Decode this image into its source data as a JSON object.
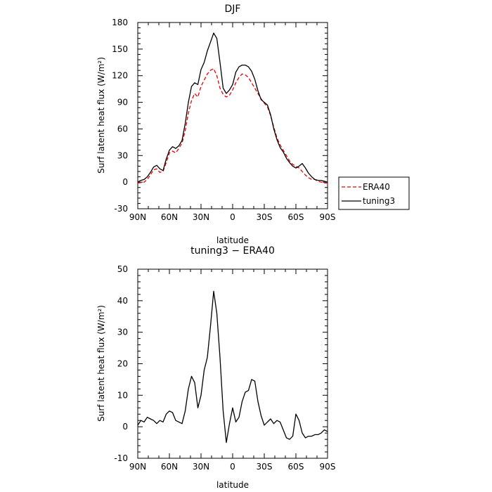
{
  "chart_data": [
    {
      "type": "line",
      "title": "DJF",
      "xlabel": "latitude",
      "ylabel": "Surf latent heat flux (W/m²)",
      "xlim": [
        -90,
        90
      ],
      "ylim": [
        -30,
        180
      ],
      "x_ticks": [
        -90,
        -60,
        -30,
        0,
        30,
        60,
        90
      ],
      "x_tick_labels": [
        "90N",
        "60N",
        "30N",
        "0",
        "30S",
        "60S",
        "90S"
      ],
      "y_ticks": [
        -30,
        0,
        30,
        60,
        90,
        120,
        150,
        180
      ],
      "y_tick_labels": [
        "-30",
        "0",
        "30",
        "60",
        "90",
        "120",
        "150",
        "180"
      ],
      "legend_position": "right-bottom",
      "series": [
        {
          "name": "ERA40",
          "color": "#ee0000",
          "dash": "dashed",
          "x": [
            -90,
            -87,
            -84,
            -81,
            -78,
            -75,
            -72,
            -69,
            -66,
            -63,
            -60,
            -57,
            -54,
            -51,
            -48,
            -45,
            -42,
            -39,
            -36,
            -33,
            -30,
            -27,
            -24,
            -21,
            -18,
            -15,
            -12,
            -9,
            -6,
            -3,
            0,
            3,
            6,
            9,
            12,
            15,
            18,
            21,
            24,
            27,
            30,
            33,
            36,
            39,
            42,
            45,
            48,
            51,
            54,
            57,
            60,
            63,
            66,
            69,
            72,
            75,
            78,
            81,
            84,
            87,
            90
          ],
          "y": [
            -1,
            -0.5,
            0,
            3,
            8,
            14,
            15,
            11,
            12,
            22,
            33,
            35,
            33,
            38,
            44,
            58,
            78,
            92,
            100,
            96,
            108,
            115,
            122,
            126,
            128,
            120,
            106,
            99,
            96,
            98,
            104,
            112,
            118,
            122,
            121,
            118,
            112,
            106,
            100,
            94,
            89,
            85,
            75,
            62,
            50,
            42,
            36,
            30,
            24,
            20,
            18,
            16,
            12,
            8,
            5,
            3,
            3,
            1,
            0,
            -1,
            -1
          ]
        },
        {
          "name": "tuning3",
          "color": "#000000",
          "dash": "solid",
          "x": [
            -90,
            -87,
            -84,
            -81,
            -78,
            -75,
            -72,
            -69,
            -66,
            -63,
            -60,
            -57,
            -54,
            -51,
            -48,
            -45,
            -42,
            -39,
            -36,
            -33,
            -30,
            -27,
            -24,
            -21,
            -18,
            -15,
            -12,
            -9,
            -6,
            -3,
            0,
            3,
            6,
            9,
            12,
            15,
            18,
            21,
            24,
            27,
            30,
            33,
            36,
            39,
            42,
            45,
            48,
            51,
            54,
            57,
            60,
            63,
            66,
            69,
            72,
            75,
            78,
            81,
            84,
            87,
            90
          ],
          "y": [
            0,
            2,
            3,
            6,
            11,
            17,
            19,
            15,
            13,
            26,
            36,
            40,
            38,
            41,
            47,
            66,
            90,
            108,
            112,
            110,
            127,
            135,
            148,
            158,
            168,
            162,
            135,
            106,
            100,
            104,
            110,
            124,
            130,
            132,
            132,
            130,
            125,
            116,
            103,
            93,
            90,
            87,
            76,
            60,
            48,
            39,
            34,
            27,
            22,
            18,
            16,
            18,
            21,
            16,
            10,
            6,
            3,
            2,
            2,
            1,
            0
          ]
        }
      ]
    },
    {
      "type": "line",
      "title": "tuning3 − ERA40",
      "xlabel": "latitude",
      "ylabel": "Surf latent heat flux (W/m²)",
      "xlim": [
        -90,
        90
      ],
      "ylim": [
        -10,
        50
      ],
      "x_ticks": [
        -90,
        -60,
        -30,
        0,
        30,
        60,
        90
      ],
      "x_tick_labels": [
        "90N",
        "60N",
        "30N",
        "0",
        "30S",
        "60S",
        "90S"
      ],
      "y_ticks": [
        -10,
        0,
        10,
        20,
        30,
        40,
        50
      ],
      "y_tick_labels": [
        "-10",
        "0",
        "10",
        "20",
        "30",
        "40",
        "50"
      ],
      "series": [
        {
          "name": "",
          "color": "#000000",
          "dash": "solid",
          "x": [
            -90,
            -87,
            -84,
            -81,
            -78,
            -75,
            -72,
            -69,
            -66,
            -63,
            -60,
            -57,
            -54,
            -51,
            -48,
            -45,
            -42,
            -39,
            -36,
            -33,
            -30,
            -27,
            -24,
            -21,
            -18,
            -15,
            -12,
            -9,
            -6,
            -3,
            0,
            3,
            6,
            9,
            12,
            15,
            18,
            21,
            24,
            27,
            30,
            33,
            36,
            39,
            42,
            45,
            48,
            51,
            54,
            57,
            60,
            63,
            66,
            69,
            72,
            75,
            78,
            81,
            84,
            87,
            90
          ],
          "y": [
            0.5,
            2,
            1.5,
            3,
            2.5,
            2,
            1,
            2,
            1.5,
            4,
            5,
            4.5,
            2,
            1.5,
            1,
            5,
            12,
            16,
            14,
            6,
            10,
            18,
            22,
            32,
            43,
            36,
            22,
            5,
            -5,
            1,
            6,
            1.5,
            3,
            8,
            11,
            11.5,
            15,
            14.5,
            8,
            3.5,
            0.5,
            1.5,
            2.5,
            1,
            2,
            1.5,
            -1,
            -3.5,
            -4,
            -3,
            4,
            2,
            -2,
            -3.5,
            -3,
            -3,
            -2.5,
            -2.5,
            -2,
            -1,
            -1.5
          ]
        }
      ]
    }
  ]
}
